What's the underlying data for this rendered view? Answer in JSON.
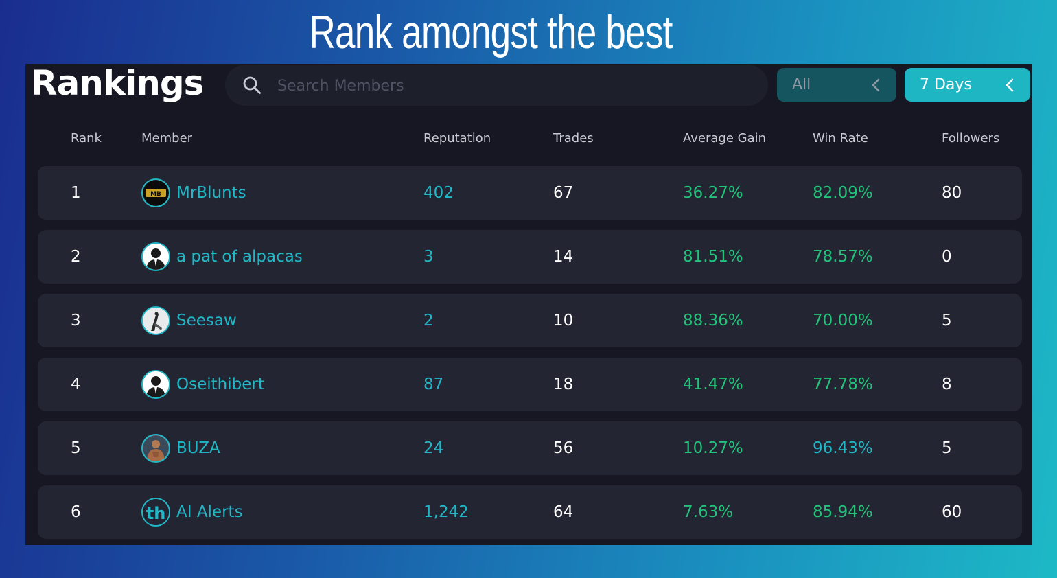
{
  "hero": {
    "title": "Rank amongst the best"
  },
  "panel": {
    "title": "Rankings"
  },
  "search": {
    "placeholder": "Search Members",
    "icon": "search-icon"
  },
  "filters": {
    "scope": {
      "label": "All",
      "icon": "chevron-left-icon"
    },
    "period": {
      "label": "7 Days",
      "icon": "chevron-left-icon"
    }
  },
  "columns": {
    "rank": "Rank",
    "member": "Member",
    "reputation": "Reputation",
    "trades": "Trades",
    "average_gain": "Average Gain",
    "win_rate": "Win Rate",
    "followers": "Followers"
  },
  "rows": [
    {
      "rank": "1",
      "member": "MrBlunts",
      "reputation": "402",
      "trades": "67",
      "average_gain": "36.27%",
      "win_rate": "82.09%",
      "followers": "80",
      "avatar": "logo-avatar"
    },
    {
      "rank": "2",
      "member": "a pat of alpacas",
      "reputation": "3",
      "trades": "14",
      "average_gain": "81.51%",
      "win_rate": "78.57%",
      "followers": "0",
      "avatar": "default-silhouette-avatar"
    },
    {
      "rank": "3",
      "member": "Seesaw",
      "reputation": "2",
      "trades": "10",
      "average_gain": "88.36%",
      "win_rate": "70.00%",
      "followers": "5",
      "avatar": "photo-avatar"
    },
    {
      "rank": "4",
      "member": "Oseithibert",
      "reputation": "87",
      "trades": "18",
      "average_gain": "41.47%",
      "win_rate": "77.78%",
      "followers": "8",
      "avatar": "default-silhouette-avatar"
    },
    {
      "rank": "5",
      "member": "BUZA",
      "reputation": "24",
      "trades": "56",
      "average_gain": "10.27%",
      "win_rate": "96.43%",
      "followers": "5",
      "avatar": "photo-avatar"
    },
    {
      "rank": "6",
      "member": "AI Alerts",
      "reputation": "1,242",
      "trades": "64",
      "average_gain": "7.63%",
      "win_rate": "85.94%",
      "followers": "60",
      "avatar": "th-logo-avatar"
    }
  ],
  "colors": {
    "accent_teal": "#20b7c6",
    "positive_green": "#22c37a",
    "panel_bg": "#161722",
    "row_bg": "#232532"
  }
}
